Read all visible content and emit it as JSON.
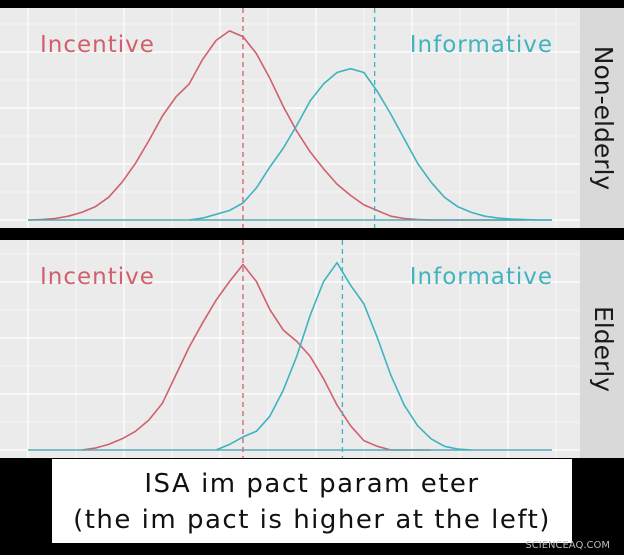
{
  "chart_data": {
    "type": "line",
    "subtype": "density",
    "grid": true,
    "colors": {
      "incentive": "#d0616b",
      "informative": "#3fb3bf"
    },
    "panels": [
      {
        "strip_label": "Non-elderly",
        "series": [
          {
            "name": "Incentive",
            "x": [
              -1.6,
              -1.5,
              -1.4,
              -1.3,
              -1.2,
              -1.1,
              -1.0,
              -0.9,
              -0.8,
              -0.7,
              -0.6,
              -0.5,
              -0.4,
              -0.3,
              -0.2,
              -0.1,
              0.0,
              0.1,
              0.2,
              0.3,
              0.4,
              0.5,
              0.6,
              0.7,
              0.8,
              0.9,
              1.0,
              1.1,
              1.2,
              1.3,
              1.4,
              1.5,
              1.6,
              1.7,
              1.8,
              1.9,
              2.0,
              2.1
            ],
            "y": [
              0.0,
              0.002,
              0.008,
              0.02,
              0.04,
              0.07,
              0.12,
              0.2,
              0.3,
              0.42,
              0.55,
              0.65,
              0.72,
              0.85,
              0.95,
              1.0,
              0.97,
              0.88,
              0.75,
              0.6,
              0.47,
              0.36,
              0.27,
              0.19,
              0.13,
              0.08,
              0.05,
              0.02,
              0.008,
              0.002,
              0.0,
              0.0,
              0.0,
              0.0,
              0.0,
              0.0,
              0.0,
              0.0
            ]
          },
          {
            "name": "Informative",
            "x": [
              -0.4,
              -0.3,
              -0.2,
              -0.1,
              0.0,
              0.1,
              0.2,
              0.3,
              0.4,
              0.5,
              0.6,
              0.7,
              0.8,
              0.9,
              1.0,
              1.1,
              1.2,
              1.3,
              1.4,
              1.5,
              1.6,
              1.7,
              1.8,
              1.9,
              2.0,
              2.1,
              2.2,
              2.3
            ],
            "y": [
              0.0,
              0.01,
              0.03,
              0.05,
              0.09,
              0.17,
              0.28,
              0.38,
              0.5,
              0.63,
              0.72,
              0.78,
              0.8,
              0.78,
              0.68,
              0.56,
              0.43,
              0.3,
              0.2,
              0.12,
              0.07,
              0.04,
              0.02,
              0.01,
              0.005,
              0.002,
              0.0,
              0.0
            ]
          }
        ],
        "mean_lines": {
          "Incentive": 0.0,
          "Informative": 0.98
        },
        "labels": {
          "Incentive": "Incentive",
          "Informative": "Informative"
        }
      },
      {
        "strip_label": "Elderly",
        "series": [
          {
            "name": "Incentive",
            "x": [
              -1.2,
              -1.1,
              -1.0,
              -0.9,
              -0.8,
              -0.7,
              -0.6,
              -0.5,
              -0.4,
              -0.3,
              -0.2,
              -0.1,
              0.0,
              0.1,
              0.2,
              0.3,
              0.4,
              0.5,
              0.6,
              0.7,
              0.8,
              0.9,
              1.0,
              1.1,
              1.2,
              1.3,
              1.4
            ],
            "y": [
              0.0,
              0.01,
              0.03,
              0.06,
              0.1,
              0.16,
              0.25,
              0.4,
              0.55,
              0.68,
              0.8,
              0.9,
              0.99,
              0.9,
              0.75,
              0.64,
              0.58,
              0.5,
              0.38,
              0.24,
              0.13,
              0.05,
              0.02,
              0.0,
              0.0,
              0.0,
              0.0
            ]
          },
          {
            "name": "Informative",
            "x": [
              -0.2,
              -0.1,
              0.0,
              0.1,
              0.2,
              0.3,
              0.4,
              0.5,
              0.6,
              0.7,
              0.8,
              0.9,
              1.0,
              1.1,
              1.2,
              1.3,
              1.4,
              1.5,
              1.6,
              1.7
            ],
            "y": [
              0.0,
              0.03,
              0.07,
              0.1,
              0.18,
              0.32,
              0.5,
              0.72,
              0.9,
              1.0,
              0.88,
              0.78,
              0.6,
              0.4,
              0.24,
              0.13,
              0.06,
              0.02,
              0.005,
              0.0
            ]
          }
        ],
        "mean_lines": {
          "Incentive": 0.0,
          "Informative": 0.74
        },
        "labels": {
          "Incentive": "Incentive",
          "Informative": "Informative"
        }
      }
    ],
    "xlabel": "ISA impact parameter\n(the impact is higher at the left)",
    "xlim": [
      -1.6,
      2.3
    ],
    "ylim": [
      0,
      1.1
    ]
  },
  "caption": {
    "line1": "ISA im pact param eter",
    "line2": "(the im pact is higher at the left)"
  },
  "watermark": "SCIENCEAQ.COM"
}
